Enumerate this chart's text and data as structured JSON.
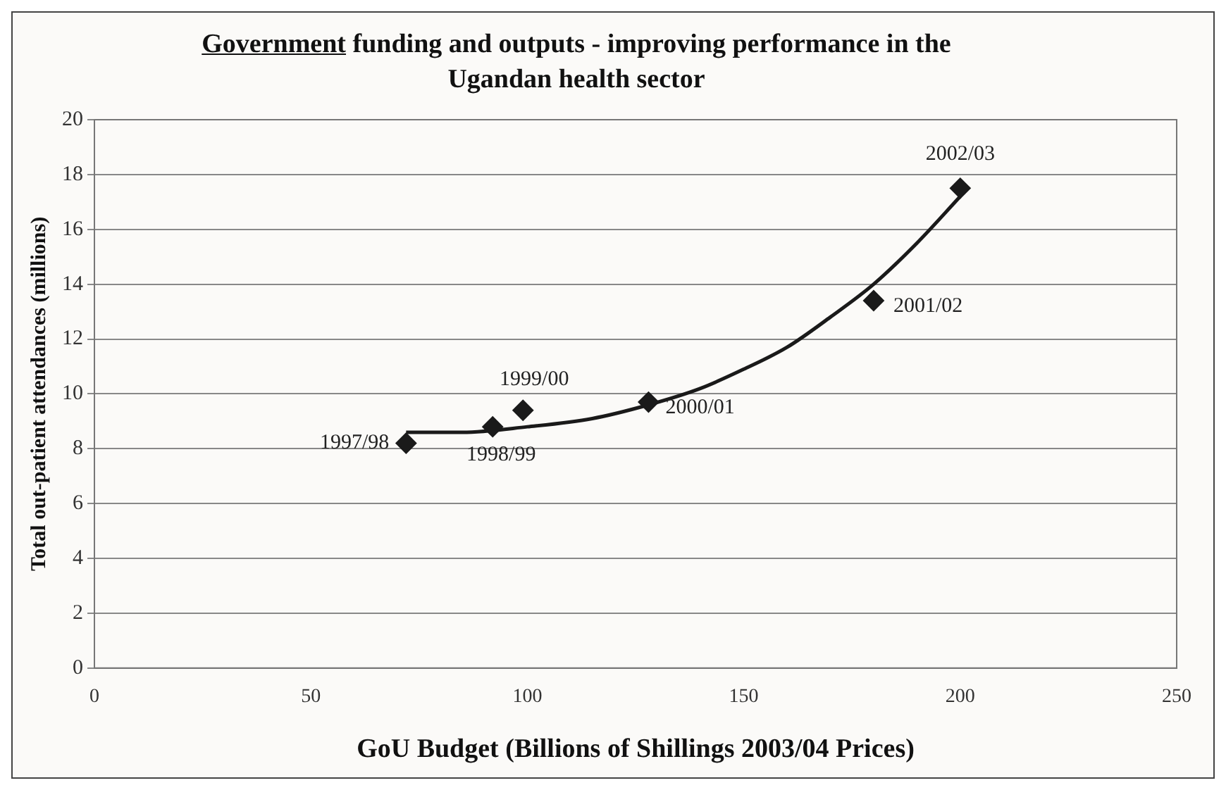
{
  "chart_data": {
    "type": "scatter",
    "title": "Government funding and outputs - improving performance in the Ugandan health sector",
    "xlabel": "GoU Budget (Billions of Shillings 2003/04 Prices)",
    "ylabel": "Total out-patient attendances (millions)",
    "series": [
      {
        "marker": "diamond",
        "color": "#1a1a1a",
        "x": [
          72,
          92,
          99,
          128,
          180,
          200
        ],
        "values": [
          8.2,
          8.8,
          9.4,
          9.7,
          13.4,
          17.5
        ]
      },
      {
        "type": "line",
        "marker": "none",
        "color": "#1a1a1a",
        "x": [
          72,
          85,
          100,
          115,
          128,
          140,
          150,
          160,
          170,
          180,
          190,
          200
        ],
        "values": [
          8.6,
          8.6,
          8.8,
          9.1,
          9.6,
          10.2,
          10.9,
          11.7,
          12.8,
          14.0,
          15.5,
          17.2
        ]
      }
    ],
    "annotations": [
      {
        "text": "1997/98",
        "x": 72,
        "y": 8.2
      },
      {
        "text": "1998/99",
        "x": 92,
        "y": 8.8
      },
      {
        "text": "1999/00",
        "x": 99,
        "y": 9.4
      },
      {
        "text": "2000/01",
        "x": 128,
        "y": 9.7
      },
      {
        "text": "2001/02",
        "x": 180,
        "y": 13.4
      },
      {
        "text": "2002/03",
        "x": 200,
        "y": 17.5
      }
    ],
    "xlim": [
      0,
      250
    ],
    "xticks": [
      0,
      50,
      100,
      150,
      200,
      250
    ],
    "ylim": [
      0,
      20
    ],
    "yticks": [
      0,
      2,
      4,
      6,
      8,
      10,
      12,
      14,
      16,
      18,
      20
    ],
    "grid": "y",
    "legend": false,
    "line_style": "solid"
  }
}
